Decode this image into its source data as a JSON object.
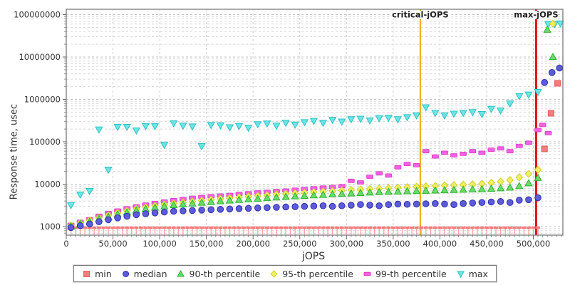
{
  "chart_data": {
    "type": "scatter",
    "title": "",
    "xlabel": "jOPS",
    "ylabel": "Response time, usec",
    "y_scale": "log",
    "xlim": [
      0,
      531000
    ],
    "ylim": [
      1000,
      100000000
    ],
    "grid": true,
    "legend_position": "bottom",
    "x_ticks": [
      {
        "value": 0,
        "label": "0"
      },
      {
        "value": 50000,
        "label": "50,000"
      },
      {
        "value": 100000,
        "label": "100,000"
      },
      {
        "value": 150000,
        "label": "150,000"
      },
      {
        "value": 200000,
        "label": "200,000"
      },
      {
        "value": 250000,
        "label": "250,000"
      },
      {
        "value": 300000,
        "label": "300,000"
      },
      {
        "value": 350000,
        "label": "350,000"
      },
      {
        "value": 400000,
        "label": "400,000"
      },
      {
        "value": 450000,
        "label": "450,000"
      },
      {
        "value": 500000,
        "label": "500,000"
      }
    ],
    "y_ticks": [
      {
        "value": 1000,
        "label": "1000"
      },
      {
        "value": 10000,
        "label": "10000"
      },
      {
        "value": 100000,
        "label": "100000"
      },
      {
        "value": 1000000,
        "label": "1000000"
      },
      {
        "value": 10000000,
        "label": "10000000"
      },
      {
        "value": 100000000,
        "label": "100000000"
      }
    ],
    "annotations": [
      {
        "label": "critical-jOPS",
        "x": 379000,
        "color": "#f2a70c",
        "width": 2
      },
      {
        "label": "max-jOPS",
        "x": 503000,
        "color": "#e51212",
        "width": 3
      }
    ],
    "x": [
      5000,
      15000,
      25000,
      35000,
      45000,
      55000,
      65000,
      75000,
      85000,
      95000,
      105000,
      115000,
      125000,
      135000,
      145000,
      155000,
      165000,
      175000,
      185000,
      195000,
      205000,
      215000,
      225000,
      235000,
      245000,
      255000,
      265000,
      275000,
      285000,
      295000,
      305000,
      315000,
      325000,
      335000,
      345000,
      355000,
      365000,
      375000,
      385000,
      395000,
      405000,
      415000,
      425000,
      435000,
      445000,
      455000,
      465000,
      475000,
      485000,
      495000,
      505000
    ],
    "series": [
      {
        "id": "min",
        "name": "min",
        "marker": "tee",
        "post_marker": "square",
        "color": "#f47c7c",
        "stroke": "#e05c5c",
        "constant_value": 950,
        "x_from": 5000,
        "x_to": 505000,
        "x_step": 5000,
        "post_points": [
          [
            512000,
            68000
          ],
          [
            519000,
            470000
          ],
          [
            526000,
            2400000
          ]
        ]
      },
      {
        "id": "max",
        "name": "max",
        "marker": "triangle-down",
        "color": "#6ce5e5",
        "stroke": "#2fc2c2",
        "values": [
          3200,
          5700,
          6900,
          195000,
          22000,
          225000,
          225000,
          185000,
          235000,
          235000,
          85000,
          273000,
          240000,
          230000,
          79000,
          250000,
          245000,
          220000,
          235000,
          215000,
          260000,
          270000,
          240000,
          280000,
          255000,
          290000,
          310000,
          280000,
          330000,
          300000,
          340000,
          350000,
          320000,
          360000,
          370000,
          340000,
          380000,
          420000,
          650000,
          480000,
          420000,
          460000,
          480000,
          500000,
          450000,
          600000,
          550000,
          800000,
          1200000,
          1300000,
          1500000
        ],
        "post_points": [
          [
            516000,
            60000000
          ],
          [
            523000,
            60000000
          ],
          [
            529000,
            62000000
          ]
        ]
      },
      {
        "id": "p99",
        "name": "99-th percentile",
        "marker": "dash",
        "color": "#f162e2",
        "stroke": "#d938c4",
        "values": [
          1100,
          1300,
          1500,
          1800,
          2100,
          2400,
          2700,
          3000,
          3300,
          3600,
          3900,
          4200,
          4500,
          4800,
          5000,
          5200,
          5400,
          5600,
          5900,
          6100,
          6400,
          6600,
          6900,
          7100,
          7400,
          7700,
          8000,
          8300,
          8600,
          9000,
          12000,
          11000,
          15000,
          18000,
          16000,
          25000,
          30000,
          28000,
          60000,
          45000,
          55000,
          48000,
          52000,
          60000,
          55000,
          65000,
          70000,
          60000,
          80000,
          95000,
          190000
        ],
        "post_points": [
          [
            510000,
            250000
          ],
          [
            516000,
            160000
          ]
        ]
      },
      {
        "id": "p95",
        "name": "95-th percentile",
        "marker": "diamond",
        "color": "#f0ef62",
        "stroke": "#cfce30",
        "values": [
          1050,
          1200,
          1400,
          1600,
          1850,
          2100,
          2350,
          2600,
          2850,
          3100,
          3300,
          3500,
          3700,
          3900,
          4100,
          4300,
          4500,
          4700,
          4900,
          5100,
          5300,
          5500,
          5700,
          5900,
          6100,
          6300,
          6500,
          6700,
          6900,
          7100,
          7300,
          7500,
          7700,
          7900,
          8100,
          8300,
          8500,
          8700,
          8900,
          9100,
          9300,
          9500,
          9700,
          9900,
          10200,
          10800,
          11500,
          12500,
          14500,
          17500,
          22000
        ],
        "post_points": [
          [
            521000,
            61000000
          ]
        ]
      },
      {
        "id": "p90",
        "name": "90-th percentile",
        "marker": "triangle-up",
        "color": "#6bdc6b",
        "stroke": "#2fb02f",
        "values": [
          1000,
          1150,
          1300,
          1500,
          1700,
          1950,
          2150,
          2400,
          2600,
          2800,
          3000,
          3200,
          3350,
          3500,
          3650,
          3800,
          3950,
          4100,
          4250,
          4400,
          4550,
          4700,
          4850,
          5000,
          5150,
          5300,
          5450,
          5600,
          5750,
          5900,
          6050,
          6200,
          6350,
          6500,
          6600,
          6700,
          6800,
          6900,
          7000,
          7100,
          7200,
          7300,
          7400,
          7500,
          7600,
          7800,
          8000,
          8300,
          9000,
          10500,
          14000
        ],
        "post_points": [
          [
            515000,
            44000000
          ],
          [
            521000,
            10000000
          ]
        ]
      },
      {
        "id": "median",
        "name": "median",
        "marker": "circle",
        "color": "#5c5cdb",
        "stroke": "#3030a8",
        "values": [
          950,
          1050,
          1150,
          1300,
          1450,
          1600,
          1750,
          1900,
          2000,
          2100,
          2200,
          2300,
          2350,
          2400,
          2450,
          2500,
          2550,
          2600,
          2650,
          2700,
          2750,
          2800,
          2850,
          2900,
          2950,
          3000,
          3050,
          3100,
          3000,
          3100,
          3200,
          3300,
          3200,
          3100,
          3300,
          3400,
          3350,
          3400,
          3450,
          3500,
          3400,
          3300,
          3500,
          3600,
          3700,
          3800,
          3900,
          3700,
          4200,
          4300,
          4800
        ],
        "post_points": [
          [
            512000,
            2500000
          ],
          [
            520000,
            4300000
          ],
          [
            528000,
            5500000
          ]
        ]
      }
    ],
    "legend_order": [
      "min",
      "median",
      "p90",
      "p95",
      "p99",
      "max"
    ]
  }
}
